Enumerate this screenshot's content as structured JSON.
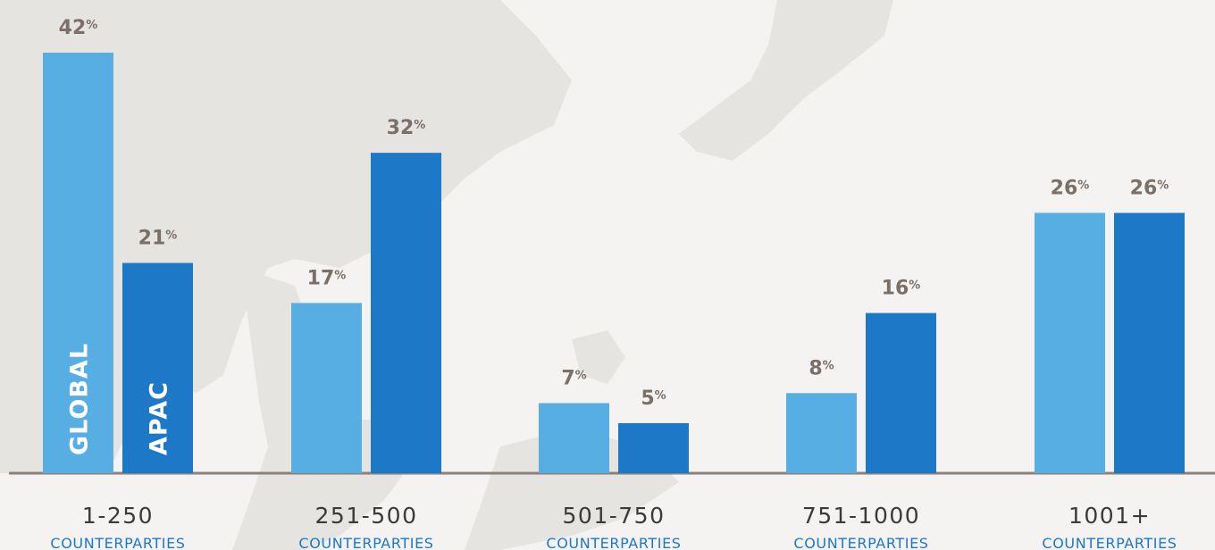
{
  "colors": {
    "background": "#f4f3f1",
    "map": "#e6e4e1",
    "global": "#57aee3",
    "apac": "#1e78c8",
    "value_label": "#7b6f67",
    "category_label": "#3a3a3a",
    "axis": "#8c8078"
  },
  "chart_data": {
    "type": "bar",
    "categories": [
      "1-250",
      "251-500",
      "501-750",
      "751-1000",
      "1001+"
    ],
    "category_sublabel": "COUNTERPARTIES",
    "series": [
      {
        "name": "GLOBAL",
        "values": [
          42,
          17,
          7,
          8,
          26
        ]
      },
      {
        "name": "APAC",
        "values": [
          21,
          32,
          5,
          16,
          26
        ]
      }
    ],
    "value_suffix": "%",
    "ylim": [
      0,
      42
    ],
    "grid": false,
    "legend": "inside-first-bars"
  }
}
